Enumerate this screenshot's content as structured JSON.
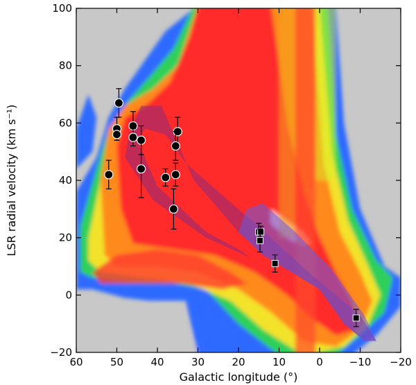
{
  "chart_data": {
    "type": "scatter",
    "title": "",
    "xlabel": "Galactic longitude (°)",
    "ylabel": "LSR radial velocity (km s⁻¹)",
    "xlim": [
      60,
      -20
    ],
    "ylim": [
      -20,
      100
    ],
    "x_ticks": [
      60,
      50,
      40,
      30,
      20,
      10,
      0,
      -10,
      -20
    ],
    "y_ticks": [
      -20,
      0,
      20,
      40,
      60,
      80,
      100
    ],
    "x_tick_labels": [
      "60",
      "50",
      "40",
      "30",
      "20",
      "10",
      "0",
      "−10",
      "−20"
    ],
    "y_tick_labels": [
      "−20",
      "0",
      "20",
      "40",
      "60",
      "80",
      "100"
    ],
    "background": "longitude-velocity intensity map (HI/CO emission), gray where no data",
    "overlays": [
      {
        "name": "band-a",
        "shape": "polygon",
        "color": "#8a2a7a",
        "vertices": [
          [
            47,
            56
          ],
          [
            44,
            66
          ],
          [
            39,
            66
          ],
          [
            31,
            40
          ],
          [
            20,
            22
          ],
          [
            14,
            14
          ],
          [
            0,
            2
          ],
          [
            -6,
            -10
          ],
          [
            -11,
            -16
          ],
          [
            -14,
            -16
          ],
          [
            -10,
            -7
          ],
          [
            2,
            7
          ],
          [
            16,
            25
          ],
          [
            33,
            46
          ],
          [
            38,
            56
          ],
          [
            43,
            58
          ],
          [
            45,
            54
          ],
          [
            40,
            38
          ],
          [
            28,
            22
          ],
          [
            20,
            16
          ],
          [
            17,
            13
          ],
          [
            28,
            20
          ],
          [
            41,
            33
          ],
          [
            48,
            48
          ]
        ]
      },
      {
        "name": "band-b",
        "shape": "polygon",
        "color": "#6a5ae0",
        "vertices": [
          [
            20,
            22
          ],
          [
            18,
            30
          ],
          [
            14,
            32
          ],
          [
            6,
            22
          ],
          [
            -3,
            9
          ],
          [
            -11,
            -7
          ],
          [
            -14,
            -16
          ],
          [
            -11,
            -16
          ],
          [
            -6,
            -10
          ],
          [
            0,
            2
          ],
          [
            14,
            14
          ]
        ]
      }
    ],
    "series": [
      {
        "marker": "circle",
        "color": "#000000",
        "points": [
          {
            "x": 52,
            "y": 42,
            "yerr": [
              5,
              5
            ]
          },
          {
            "x": 49.5,
            "y": 67,
            "yerr": [
              5,
              5
            ]
          },
          {
            "x": 50,
            "y": 58,
            "yerr": [
              4,
              4
            ]
          },
          {
            "x": 50,
            "y": 56,
            "yerr": [
              2,
              2
            ]
          },
          {
            "x": 46,
            "y": 59,
            "yerr": [
              5,
              5
            ]
          },
          {
            "x": 46,
            "y": 55,
            "yerr": [
              3,
              3
            ]
          },
          {
            "x": 44,
            "y": 54,
            "yerr": [
              5,
              5
            ]
          },
          {
            "x": 44,
            "y": 44,
            "yerr": [
              10,
              10
            ]
          },
          {
            "x": 38,
            "y": 41,
            "yerr": [
              3,
              3
            ]
          },
          {
            "x": 35,
            "y": 57,
            "yerr": [
              5,
              5
            ]
          },
          {
            "x": 35.5,
            "y": 52,
            "yerr": [
              5,
              5
            ]
          },
          {
            "x": 35.5,
            "y": 42,
            "yerr": [
              4,
              4
            ]
          },
          {
            "x": 36,
            "y": 30,
            "yerr": [
              7,
              7
            ]
          }
        ]
      },
      {
        "marker": "square",
        "color": "#000000",
        "points": [
          {
            "x": 15,
            "y": 22,
            "yerr": [
              3,
              3
            ]
          },
          {
            "x": 14.5,
            "y": 22,
            "yerr": [
              2,
              2
            ]
          },
          {
            "x": 14.7,
            "y": 19,
            "yerr": [
              4,
              4
            ]
          },
          {
            "x": 11,
            "y": 11,
            "yerr": [
              3,
              3
            ]
          },
          {
            "x": -9,
            "y": -8,
            "yerr": [
              3,
              3
            ]
          }
        ]
      }
    ]
  }
}
